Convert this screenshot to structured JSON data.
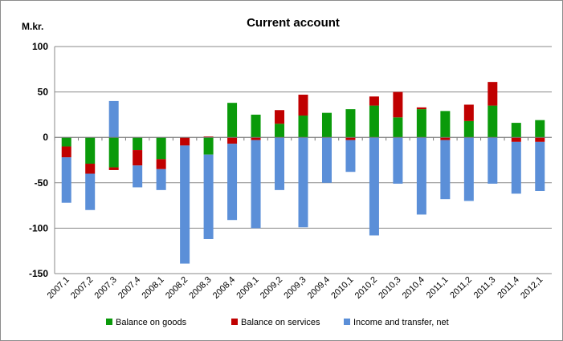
{
  "chart_data": {
    "type": "bar",
    "stacked": true,
    "title": "Current account",
    "ylabel": "M.kr.",
    "xlabel": "",
    "ylim": [
      -150,
      100
    ],
    "yticks": [
      100,
      50,
      0,
      -50,
      -100,
      -150
    ],
    "grid": true,
    "legend": "bottom",
    "categories": [
      "2007,1",
      "2007,2",
      "2007,3",
      "2007,4",
      "2008,1",
      "2008,2",
      "2008,3",
      "2008,4",
      "2009,1",
      "2009,2",
      "2009,3",
      "2009,4",
      "2010,1",
      "2010,2",
      "2010,3",
      "2010,4",
      "2011,1",
      "2011,2",
      "2011,3",
      "2011,4",
      "2012,1"
    ],
    "series": [
      {
        "name": "Balance on goods",
        "color": "#0a9a0a",
        "values": [
          -10,
          -29,
          -33,
          -14,
          -24,
          0,
          -19,
          38,
          25,
          15,
          24,
          27,
          31,
          35,
          22,
          31,
          29,
          18,
          35,
          16,
          19
        ]
      },
      {
        "name": "Balance on services",
        "color": "#c00000",
        "values": [
          -12,
          -11,
          -3,
          -17,
          -11,
          -9,
          1,
          -7,
          -3,
          15,
          23,
          0,
          -3,
          10,
          28,
          2,
          -3,
          18,
          26,
          -5,
          -5
        ]
      },
      {
        "name": "Income and transfer, net",
        "color": "#5b8fd8",
        "values": [
          -50,
          -40,
          40,
          -24,
          -23,
          -130,
          -93,
          -84,
          -97,
          -58,
          -99,
          -50,
          -35,
          -108,
          -51,
          -85,
          -65,
          -70,
          -51,
          -57,
          -54
        ]
      }
    ]
  }
}
